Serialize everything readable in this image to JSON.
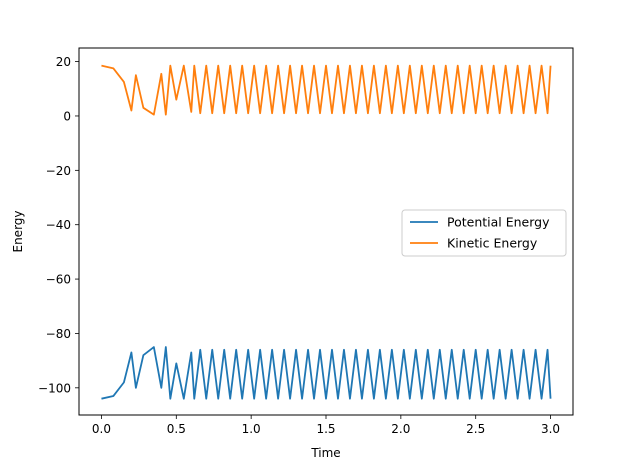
{
  "chart_data": {
    "type": "line",
    "title": "",
    "xlabel": "Time",
    "ylabel": "Energy",
    "xlim": [
      -0.15,
      3.15
    ],
    "ylim": [
      -110,
      25
    ],
    "xticks": [
      0.0,
      0.5,
      1.0,
      1.5,
      2.0,
      2.5,
      3.0
    ],
    "xtick_labels": [
      "0.0",
      "0.5",
      "1.0",
      "1.5",
      "2.0",
      "2.5",
      "3.0"
    ],
    "yticks": [
      20,
      0,
      -20,
      -40,
      -60,
      -80,
      -100
    ],
    "ytick_labels": [
      "20",
      "0",
      "−20",
      "−40",
      "−60",
      "−80",
      "−100"
    ],
    "grid": false,
    "legend_position": "center-right",
    "series": [
      {
        "name": "Potential Energy",
        "color": "#1f77b4",
        "x": [
          0.0,
          0.08,
          0.15,
          0.2,
          0.23,
          0.28,
          0.35,
          0.4,
          0.43,
          0.46,
          0.5,
          0.55,
          0.6,
          0.62,
          0.66,
          0.7,
          0.74,
          0.78,
          0.82,
          0.86,
          0.9,
          0.94,
          0.98,
          1.02,
          1.06,
          1.1,
          1.14,
          1.18,
          1.22,
          1.26,
          1.3,
          1.34,
          1.38,
          1.42,
          1.46,
          1.5,
          1.54,
          1.58,
          1.62,
          1.66,
          1.7,
          1.74,
          1.78,
          1.82,
          1.86,
          1.9,
          1.94,
          1.98,
          2.02,
          2.06,
          2.1,
          2.14,
          2.18,
          2.22,
          2.26,
          2.3,
          2.34,
          2.38,
          2.42,
          2.46,
          2.5,
          2.54,
          2.58,
          2.62,
          2.66,
          2.7,
          2.74,
          2.78,
          2.82,
          2.86,
          2.9,
          2.94,
          2.98,
          3.0
        ],
        "y": [
          -104,
          -103,
          -98,
          -87,
          -100,
          -88,
          -85,
          -100,
          -85,
          -104,
          -91,
          -104,
          -87,
          -104,
          -86,
          -104,
          -86,
          -104,
          -86,
          -104,
          -86,
          -104,
          -86,
          -104,
          -86,
          -104,
          -86,
          -104,
          -86,
          -104,
          -86,
          -104,
          -86,
          -104,
          -86,
          -104,
          -86,
          -104,
          -86,
          -104,
          -86,
          -104,
          -86,
          -104,
          -86,
          -104,
          -86,
          -104,
          -86,
          -104,
          -86,
          -104,
          -86,
          -104,
          -86,
          -104,
          -86,
          -104,
          -86,
          -104,
          -86,
          -104,
          -86,
          -104,
          -86,
          -104,
          -86,
          -104,
          -86,
          -104,
          -86,
          -104,
          -86,
          -104
        ]
      },
      {
        "name": "Kinetic Energy",
        "color": "#ff7f0e",
        "x": [
          0.0,
          0.08,
          0.15,
          0.2,
          0.23,
          0.28,
          0.35,
          0.4,
          0.43,
          0.46,
          0.5,
          0.55,
          0.6,
          0.62,
          0.66,
          0.7,
          0.74,
          0.78,
          0.82,
          0.86,
          0.9,
          0.94,
          0.98,
          1.02,
          1.06,
          1.1,
          1.14,
          1.18,
          1.22,
          1.26,
          1.3,
          1.34,
          1.38,
          1.42,
          1.46,
          1.5,
          1.54,
          1.58,
          1.62,
          1.66,
          1.7,
          1.74,
          1.78,
          1.82,
          1.86,
          1.9,
          1.94,
          1.98,
          2.02,
          2.06,
          2.1,
          2.14,
          2.18,
          2.22,
          2.26,
          2.3,
          2.34,
          2.38,
          2.42,
          2.46,
          2.5,
          2.54,
          2.58,
          2.62,
          2.66,
          2.7,
          2.74,
          2.78,
          2.82,
          2.86,
          2.9,
          2.94,
          2.98,
          3.0
        ],
        "y": [
          18.5,
          17.5,
          12.5,
          2,
          15,
          3,
          0.5,
          15.5,
          0.5,
          18.5,
          6,
          18.5,
          1.5,
          18.5,
          1,
          18.5,
          1,
          18.5,
          1,
          18.5,
          1,
          18.5,
          1,
          18.5,
          1,
          18.5,
          1,
          18.5,
          1,
          18.5,
          1,
          18.5,
          1,
          18.5,
          1,
          18.5,
          1,
          18.5,
          1,
          18.5,
          1,
          18.5,
          1,
          18.5,
          1,
          18.5,
          1,
          18.5,
          1,
          18.5,
          1,
          18.5,
          1,
          18.5,
          1,
          18.5,
          1,
          18.5,
          1,
          18.5,
          1,
          18.5,
          1,
          18.5,
          1,
          18.5,
          1,
          18.5,
          1,
          18.5,
          1,
          18.5,
          1,
          18.5
        ]
      }
    ]
  }
}
